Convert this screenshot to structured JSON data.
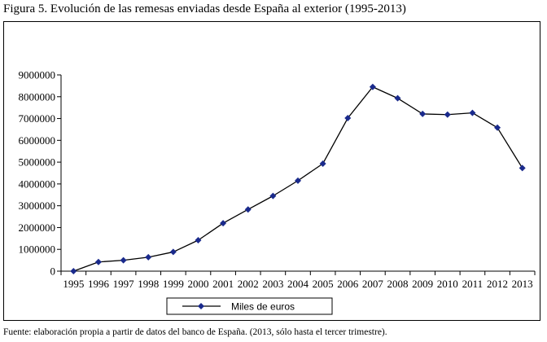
{
  "figure": {
    "title": "Figura 5. Evolución de las remesas enviadas desde España al exterior (1995-2013)",
    "source": "Fuente: elaboración propia a partir de datos del banco de España. (2013, sólo hasta el tercer trimestre)."
  },
  "colors": {
    "series_line": "#000000",
    "marker": "#1a2a8c",
    "axis": "#000000"
  },
  "chart_data": {
    "type": "line",
    "title": "",
    "xlabel": "",
    "ylabel": "",
    "categories": [
      "1995",
      "1996",
      "1997",
      "1998",
      "1999",
      "2000",
      "2001",
      "2002",
      "2003",
      "2004",
      "2005",
      "2006",
      "2007",
      "2008",
      "2009",
      "2010",
      "2011",
      "2012",
      "2013"
    ],
    "series": [
      {
        "name": "Miles de euros",
        "marker": "diamond",
        "values": [
          0,
          420000,
          500000,
          640000,
          880000,
          1420000,
          2200000,
          2830000,
          3450000,
          4150000,
          4930000,
          7020000,
          8450000,
          7930000,
          7210000,
          7180000,
          7260000,
          6580000,
          4730000
        ]
      }
    ],
    "ylim": [
      0,
      9000000
    ],
    "yticks": [
      "0",
      "1000000",
      "2000000",
      "3000000",
      "4000000",
      "5000000",
      "6000000",
      "7000000",
      "8000000",
      "9000000"
    ],
    "ytick_values": [
      0,
      1000000,
      2000000,
      3000000,
      4000000,
      5000000,
      6000000,
      7000000,
      8000000,
      9000000
    ],
    "grid": false,
    "legend_position": "bottom"
  }
}
